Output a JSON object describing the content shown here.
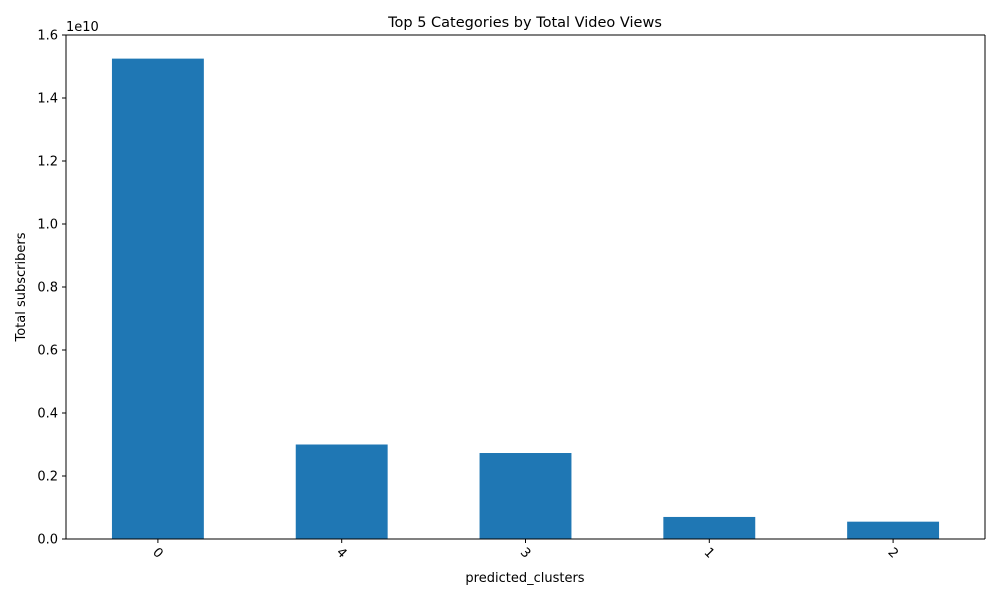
{
  "chart_data": {
    "type": "bar",
    "title": "Top 5 Categories by Total Video Views",
    "xlabel": "predicted_clusters",
    "ylabel": "Total subscribers",
    "y_offset_label": "1e10",
    "y_scale": 10000000000,
    "categories": [
      "0",
      "4",
      "3",
      "1",
      "2"
    ],
    "values": [
      15250000000,
      3000000000,
      2730000000,
      700000000,
      550000000
    ],
    "ylim": [
      0,
      16000000000
    ],
    "yticks": [
      0,
      2000000000,
      4000000000,
      6000000000,
      8000000000,
      10000000000,
      12000000000,
      14000000000,
      16000000000
    ],
    "ytick_labels": [
      "0.0",
      "0.2",
      "0.4",
      "0.6",
      "0.8",
      "1.0",
      "1.2",
      "1.4",
      "1.6"
    ],
    "bar_color": "#1f77b4",
    "grid": false,
    "xtick_rotation_deg": 45
  }
}
